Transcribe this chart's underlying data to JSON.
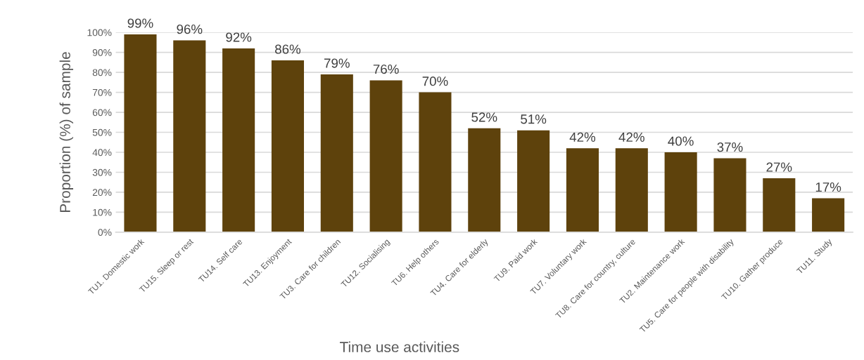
{
  "chart_data": {
    "type": "bar",
    "xlabel": "Time use activities",
    "ylabel": "Proportion (%) of sample",
    "categories": [
      "TU1. Domestic work",
      "TU15. Sleep or rest",
      "TU14. Self care",
      "TU13. Enjoyment",
      "TU3. Care for children",
      "TU12. Socialising",
      "TU6. Help others",
      "TU4. Care for elderly",
      "TU9. Paid work",
      "TU7. Voluntary work",
      "TU8. Care for country, culture",
      "TU2. Maintenance work",
      "TU5. Care for people with disability",
      "TU10. Gather produce",
      "TU11. Study"
    ],
    "values": [
      99,
      96,
      92,
      86,
      79,
      76,
      70,
      52,
      51,
      42,
      42,
      40,
      37,
      27,
      17
    ],
    "value_labels": [
      "99%",
      "96%",
      "92%",
      "86%",
      "79%",
      "76%",
      "70%",
      "52%",
      "51%",
      "42%",
      "42%",
      "40%",
      "37%",
      "27%",
      "17%"
    ],
    "color": "#5e420c",
    "ylim": [
      0,
      100
    ],
    "yticks": [
      {
        "value": 0,
        "label": "0%"
      },
      {
        "value": 10,
        "label": "10%"
      },
      {
        "value": 20,
        "label": "20%"
      },
      {
        "value": 30,
        "label": "30%"
      },
      {
        "value": 40,
        "label": "40%"
      },
      {
        "value": 50,
        "label": "50%"
      },
      {
        "value": 60,
        "label": "60%"
      },
      {
        "value": 70,
        "label": "70%"
      },
      {
        "value": 80,
        "label": "80%"
      },
      {
        "value": 90,
        "label": "90%"
      },
      {
        "value": 100,
        "label": "100%"
      }
    ],
    "grid": "y"
  }
}
